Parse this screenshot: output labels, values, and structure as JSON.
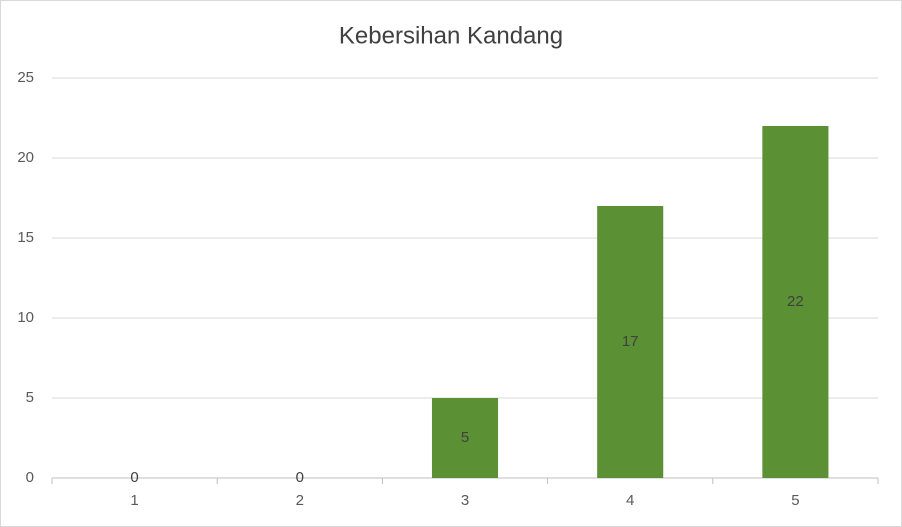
{
  "chart_data": {
    "type": "bar",
    "title": "Kebersihan Kandang",
    "categories": [
      "1",
      "2",
      "3",
      "4",
      "5"
    ],
    "values": [
      0,
      0,
      5,
      17,
      22
    ],
    "color": "#5b9034",
    "ylim": [
      0,
      25
    ],
    "yticks": [
      0,
      5,
      10,
      15,
      20,
      25
    ],
    "grid": true
  }
}
